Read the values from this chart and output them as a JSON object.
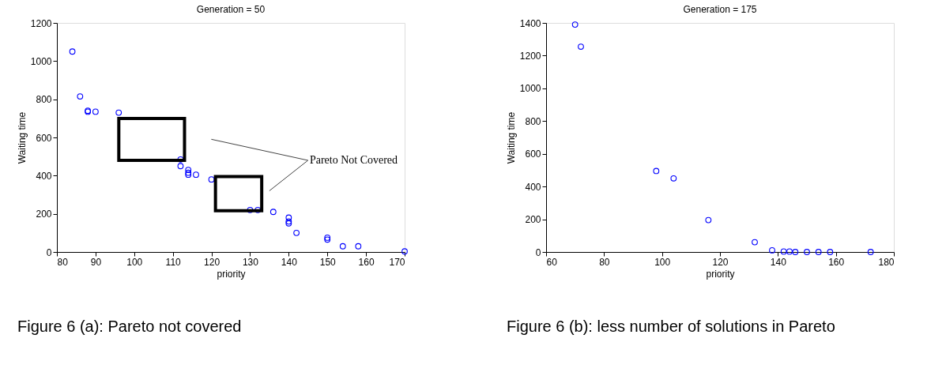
{
  "chart_data": [
    {
      "type": "scatter",
      "title": "Generation = 50",
      "xlabel": "priority",
      "ylabel": "Waiting time",
      "marker": "circle",
      "grid": false,
      "legend": false,
      "x": [
        84,
        86,
        88,
        88,
        90,
        96,
        112,
        112,
        114,
        114,
        114,
        116,
        120,
        130,
        132,
        136,
        140,
        140,
        140,
        142,
        150,
        150,
        154,
        158,
        170
      ],
      "series": [
        {
          "color": "#0000ff",
          "values": [
            1050,
            815,
            740,
            735,
            735,
            730,
            485,
            450,
            430,
            415,
            405,
            405,
            380,
            220,
            220,
            210,
            180,
            160,
            150,
            100,
            75,
            65,
            30,
            30,
            3
          ]
        }
      ],
      "xlim": [
        80,
        170
      ],
      "xticks": [
        80,
        90,
        100,
        110,
        120,
        130,
        140,
        150,
        160,
        170
      ],
      "ylim": [
        0,
        1200
      ],
      "yticks": [
        0,
        200,
        400,
        600,
        800,
        1000,
        1200
      ],
      "annotations": [
        "Pareto Not Covered",
        "Figure 6 (a): Pareto not covered"
      ]
    },
    {
      "type": "scatter",
      "title": "Generation = 175",
      "xlabel": "priority",
      "ylabel": "Waiting time",
      "marker": "circle",
      "grid": false,
      "legend": false,
      "x": [
        70,
        72,
        98,
        104,
        116,
        132,
        138,
        142,
        144,
        146,
        150,
        154,
        158,
        172
      ],
      "series": [
        {
          "color": "#0000ff",
          "values": [
            1390,
            1255,
            495,
            450,
            195,
            60,
            10,
            3,
            3,
            0,
            0,
            0,
            0,
            0
          ]
        }
      ],
      "xlim": [
        60,
        180
      ],
      "xticks": [
        60,
        80,
        100,
        120,
        140,
        160,
        180
      ],
      "ylim": [
        0,
        1400
      ],
      "yticks": [
        0,
        200,
        400,
        600,
        800,
        1000,
        1200,
        1400
      ],
      "annotations": [
        "Figure 6 (b): less number of solutions in Pareto"
      ]
    }
  ]
}
